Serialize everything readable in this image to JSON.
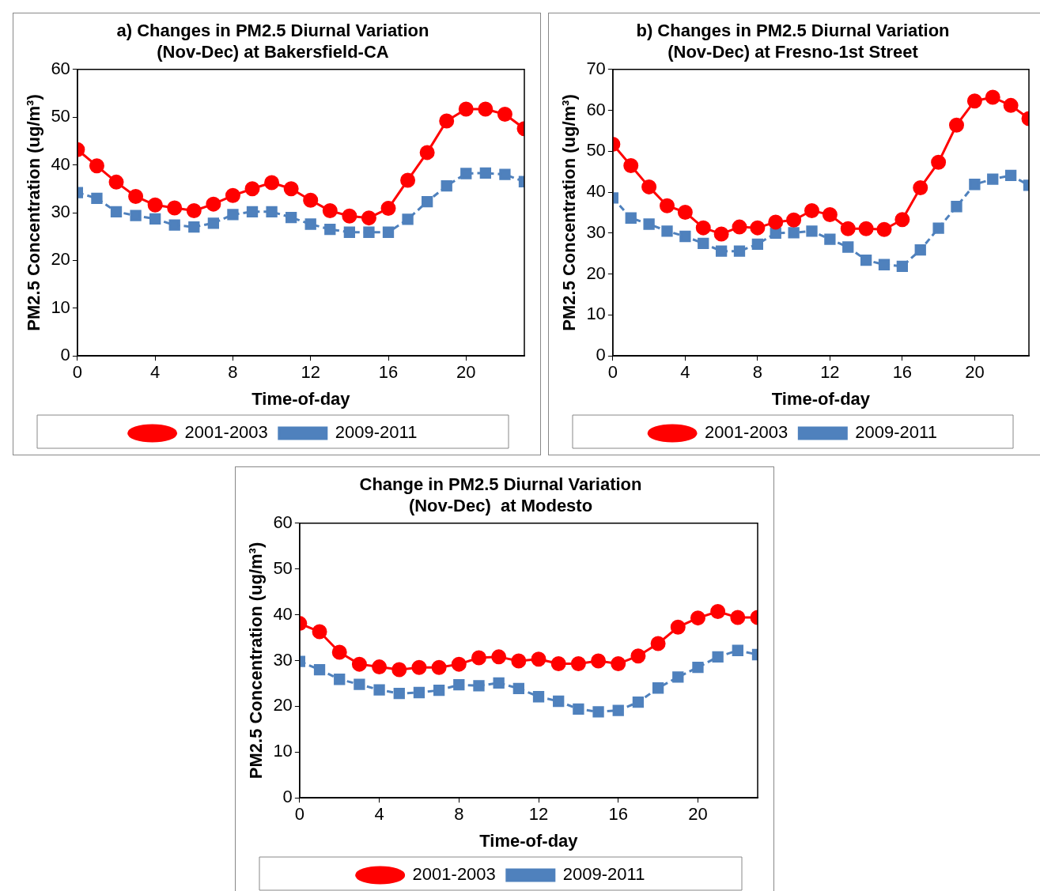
{
  "chart_data": [
    {
      "type": "line",
      "title": "a) Changes in PM2.5 Diurnal Variation\n(Nov-Dec) at Bakersfield-CA",
      "xlabel": "Time-of-day",
      "ylabel": "PM2.5 Concentration (ug/m³)",
      "x": [
        0,
        1,
        2,
        3,
        4,
        5,
        6,
        7,
        8,
        9,
        10,
        11,
        12,
        13,
        14,
        15,
        16,
        17,
        18,
        19,
        20,
        21,
        22,
        23
      ],
      "xlim": [
        0,
        23
      ],
      "xticks": [
        0,
        4,
        8,
        12,
        16,
        20
      ],
      "ylim": [
        0,
        60
      ],
      "yticks": [
        0,
        10,
        20,
        30,
        40,
        50,
        60
      ],
      "grid": false,
      "legend": "bottom",
      "series": [
        {
          "name": "2001-2003",
          "color": "#ff0000",
          "marker": "circle",
          "line_style": "solid",
          "values": [
            43.2,
            39.8,
            36.4,
            33.4,
            31.6,
            31.0,
            30.4,
            31.8,
            33.6,
            35.0,
            36.3,
            35.0,
            32.6,
            30.4,
            29.3,
            28.9,
            30.9,
            36.8,
            42.6,
            49.2,
            51.7,
            51.7,
            50.6,
            47.6
          ]
        },
        {
          "name": "2009-2011",
          "color": "#4f81bd",
          "marker": "square",
          "line_style": "dashed",
          "values": [
            34.2,
            33.0,
            30.2,
            29.4,
            28.7,
            27.4,
            27.0,
            27.8,
            29.6,
            30.2,
            30.2,
            29.0,
            27.6,
            26.5,
            25.9,
            25.9,
            25.9,
            28.6,
            32.3,
            35.6,
            38.2,
            38.3,
            38.0,
            36.5
          ]
        }
      ]
    },
    {
      "type": "line",
      "title": "b) Changes in PM2.5 Diurnal Variation\n(Nov-Dec) at Fresno-1st Street",
      "xlabel": "Time-of-day",
      "ylabel": "PM2.5 Concentration (ug/m³)",
      "x": [
        0,
        1,
        2,
        3,
        4,
        5,
        6,
        7,
        8,
        9,
        10,
        11,
        12,
        13,
        14,
        15,
        16,
        17,
        18,
        19,
        20,
        21,
        22,
        23
      ],
      "xlim": [
        0,
        23
      ],
      "xticks": [
        0,
        4,
        8,
        12,
        16,
        20
      ],
      "ylim": [
        0,
        70
      ],
      "yticks": [
        0,
        10,
        20,
        30,
        40,
        50,
        60,
        70
      ],
      "grid": false,
      "legend": "bottom",
      "series": [
        {
          "name": "2001-2003",
          "color": "#ff0000",
          "marker": "circle",
          "line_style": "solid",
          "values": [
            51.7,
            46.5,
            41.3,
            36.7,
            35.1,
            31.3,
            29.8,
            31.5,
            31.3,
            32.7,
            33.2,
            35.5,
            34.5,
            31.1,
            31.1,
            30.9,
            33.3,
            41.1,
            47.3,
            56.4,
            62.3,
            63.2,
            61.2,
            58.0
          ]
        },
        {
          "name": "2009-2011",
          "color": "#4f81bd",
          "marker": "square",
          "line_style": "dashed",
          "values": [
            38.6,
            33.7,
            32.2,
            30.5,
            29.2,
            27.5,
            25.6,
            25.6,
            27.3,
            30.0,
            30.1,
            30.5,
            28.5,
            26.6,
            23.4,
            22.3,
            21.9,
            25.9,
            31.2,
            36.5,
            41.9,
            43.2,
            44.1,
            41.7
          ]
        }
      ]
    },
    {
      "type": "line",
      "title": "Change in PM2.5 Diurnal Variation\n(Nov-Dec)  at Modesto",
      "xlabel": "Time-of-day",
      "ylabel": "PM2.5 Concentration (ug/m³)",
      "x": [
        0,
        1,
        2,
        3,
        4,
        5,
        6,
        7,
        8,
        9,
        10,
        11,
        12,
        13,
        14,
        15,
        16,
        17,
        18,
        19,
        20,
        21,
        22,
        23
      ],
      "xlim": [
        0,
        23
      ],
      "xticks": [
        0,
        4,
        8,
        12,
        16,
        20
      ],
      "ylim": [
        0,
        60
      ],
      "yticks": [
        0,
        10,
        20,
        30,
        40,
        50,
        60
      ],
      "grid": false,
      "legend": "bottom",
      "series": [
        {
          "name": "2001-2003",
          "color": "#ff0000",
          "marker": "circle",
          "line_style": "solid",
          "values": [
            38.1,
            36.3,
            31.8,
            29.2,
            28.6,
            28.0,
            28.5,
            28.5,
            29.2,
            30.6,
            30.8,
            29.9,
            30.3,
            29.3,
            29.3,
            29.9,
            29.3,
            31.0,
            33.7,
            37.3,
            39.3,
            40.7,
            39.4,
            39.4
          ]
        },
        {
          "name": "2009-2011",
          "color": "#4f81bd",
          "marker": "square",
          "line_style": "dashed",
          "values": [
            29.8,
            28.0,
            25.9,
            24.8,
            23.6,
            22.8,
            23.0,
            23.5,
            24.7,
            24.5,
            25.1,
            23.9,
            22.1,
            21.1,
            19.4,
            18.8,
            19.1,
            20.9,
            24.0,
            26.4,
            28.5,
            30.8,
            32.2,
            31.3
          ]
        }
      ]
    }
  ]
}
